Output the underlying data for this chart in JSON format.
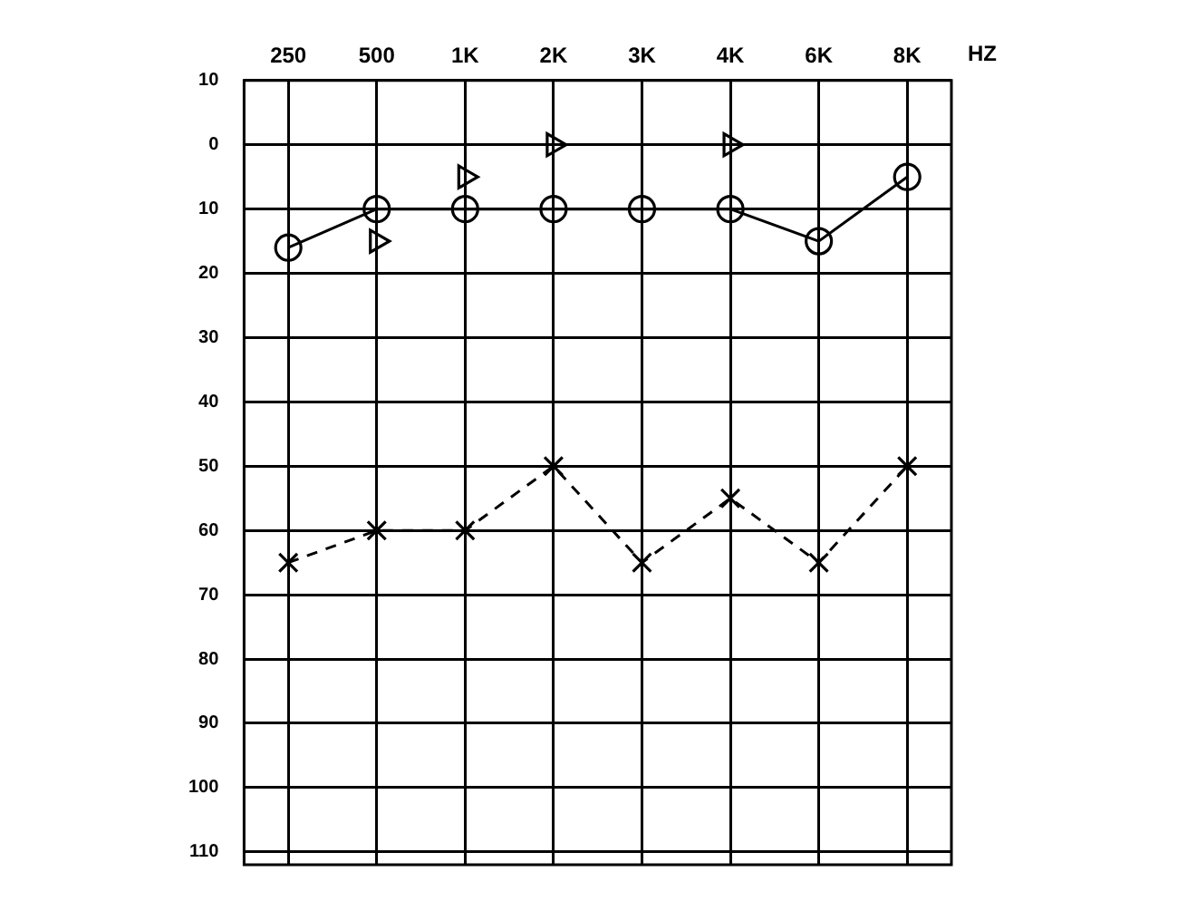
{
  "chart_data": {
    "type": "line",
    "xlabel": "HZ",
    "categories": [
      "250",
      "500",
      "1K",
      "2K",
      "3K",
      "4K",
      "6K",
      "8K"
    ],
    "ylim": [
      112,
      -10
    ],
    "yticks": [
      {
        "value": -10,
        "label": "10"
      },
      0,
      10,
      20,
      30,
      40,
      50,
      60,
      70,
      80,
      90,
      100,
      110
    ],
    "grid": true,
    "legend": false,
    "series": [
      {
        "color": "#000000",
        "marker": "circle",
        "line_style": "solid",
        "values": [
          16,
          10,
          10,
          10,
          10,
          10,
          15,
          5
        ]
      },
      {
        "color": "#000000",
        "marker": "cross",
        "line_style": "dashed",
        "values": [
          65,
          60,
          60,
          50,
          65,
          55,
          65,
          50
        ]
      },
      {
        "type": "scatter",
        "color": "#000000",
        "marker": "triangle",
        "values": [
          null,
          15,
          5,
          0,
          null,
          0,
          null,
          null
        ]
      }
    ]
  }
}
